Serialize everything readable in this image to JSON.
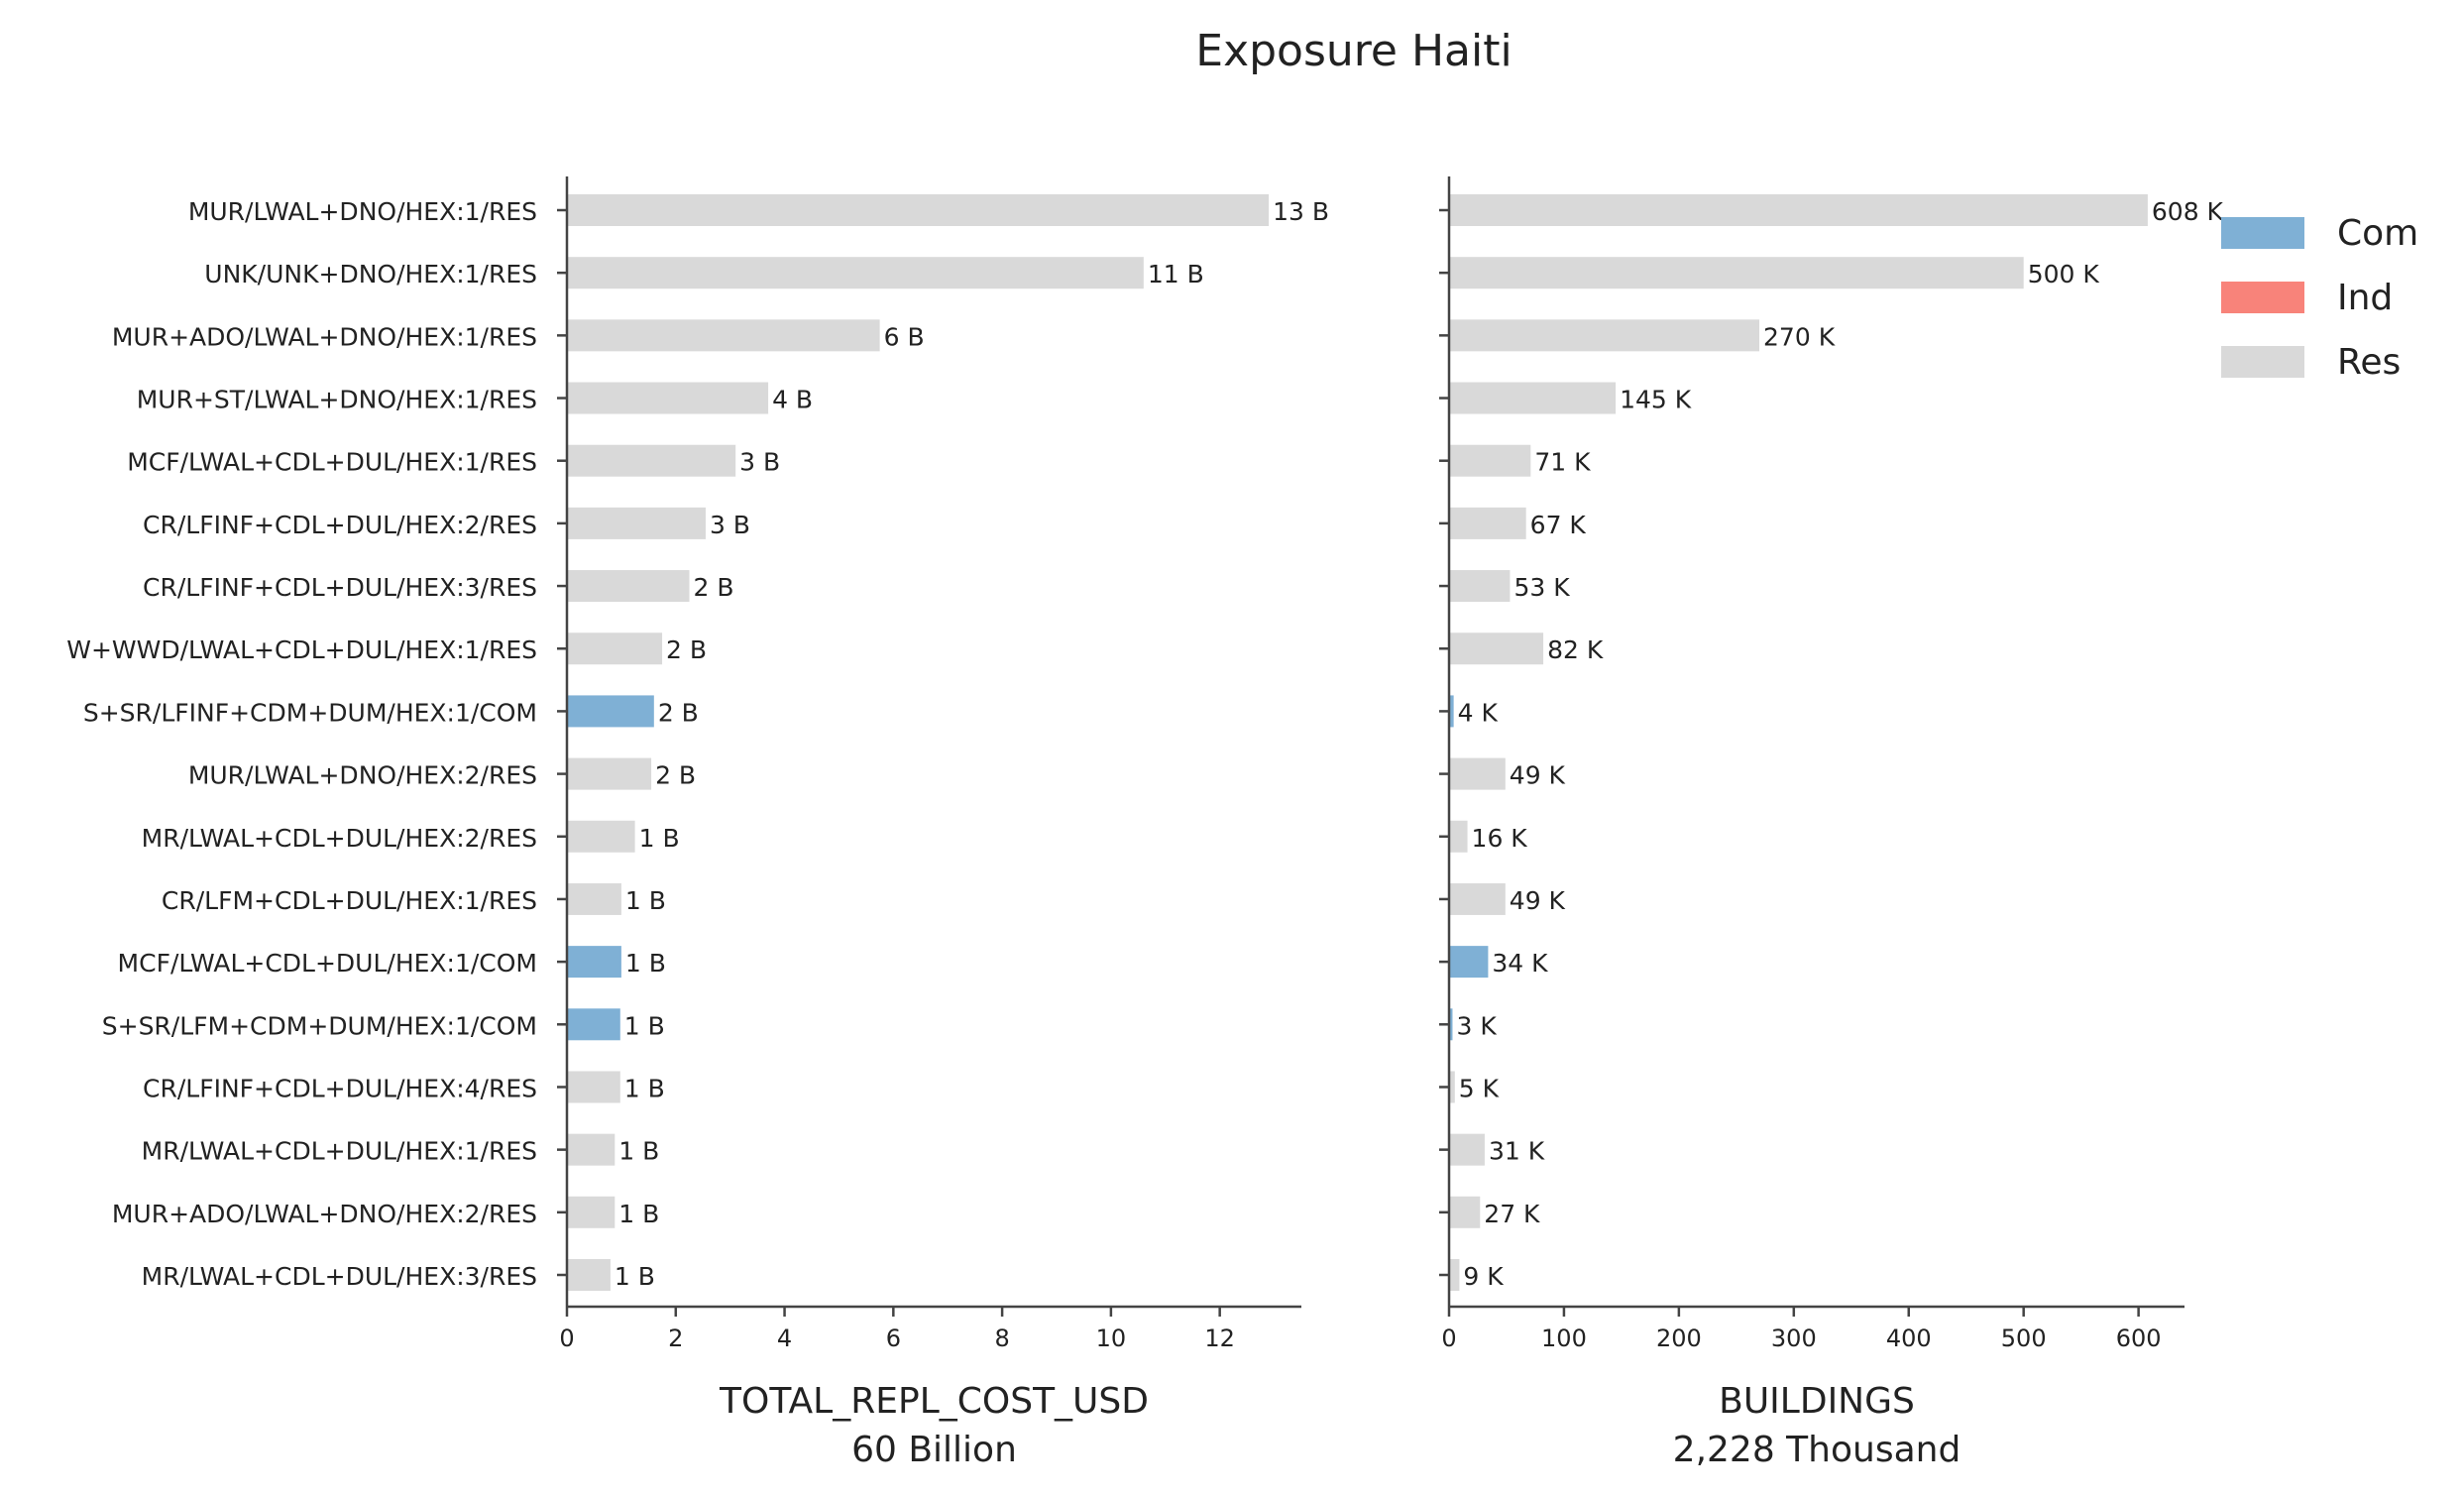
{
  "chart_data": {
    "title": "Exposure Haiti",
    "type": "bar",
    "orientation": "horizontal",
    "categories": [
      "MUR/LWAL+DNO/HEX:1/RES",
      "UNK/UNK+DNO/HEX:1/RES",
      "MUR+ADO/LWAL+DNO/HEX:1/RES",
      "MUR+ST/LWAL+DNO/HEX:1/RES",
      "MCF/LWAL+CDL+DUL/HEX:1/RES",
      "CR/LFINF+CDL+DUL/HEX:2/RES",
      "CR/LFINF+CDL+DUL/HEX:3/RES",
      "W+WWD/LWAL+CDL+DUL/HEX:1/RES",
      "S+SR/LFINF+CDM+DUM/HEX:1/COM",
      "MUR/LWAL+DNO/HEX:2/RES",
      "MR/LWAL+CDL+DUL/HEX:2/RES",
      "CR/LFM+CDL+DUL/HEX:1/RES",
      "MCF/LWAL+CDL+DUL/HEX:1/COM",
      "S+SR/LFM+CDM+DUM/HEX:1/COM",
      "CR/LFINF+CDL+DUL/HEX:4/RES",
      "MR/LWAL+CDL+DUL/HEX:1/RES",
      "MUR+ADO/LWAL+DNO/HEX:2/RES",
      "MR/LWAL+CDL+DUL/HEX:3/RES"
    ],
    "occupancy": [
      "Res",
      "Res",
      "Res",
      "Res",
      "Res",
      "Res",
      "Res",
      "Res",
      "Com",
      "Res",
      "Res",
      "Res",
      "Com",
      "Com",
      "Res",
      "Res",
      "Res",
      "Res"
    ],
    "panels": [
      {
        "xlabel": "TOTAL_REPL_COST_USD",
        "xsublabel": "60 Billion",
        "xlim": [
          0,
          13.5
        ],
        "xticks": [
          0,
          2,
          4,
          6,
          8,
          10,
          12
        ],
        "values": [
          12.9,
          10.6,
          5.75,
          3.7,
          3.1,
          2.55,
          2.25,
          1.75,
          1.6,
          1.55,
          1.25,
          1.0,
          1.0,
          0.98,
          0.98,
          0.88,
          0.88,
          0.8
        ],
        "value_labels": [
          "13 B",
          "11 B",
          "6 B",
          "4 B",
          "3 B",
          "3 B",
          "2 B",
          "2 B",
          "2 B",
          "2 B",
          "1 B",
          "1 B",
          "1 B",
          "1 B",
          "1 B",
          "1 B",
          "1 B",
          "1 B"
        ]
      },
      {
        "xlabel": "BUILDINGS",
        "xsublabel": "2,228 Thousand",
        "xlim": [
          0,
          640
        ],
        "xticks": [
          0,
          100,
          200,
          300,
          400,
          500,
          600
        ],
        "values": [
          608,
          500,
          270,
          145,
          71,
          67,
          53,
          82,
          4,
          49,
          16,
          49,
          34,
          3,
          5,
          31,
          27,
          9
        ],
        "value_labels": [
          "608 K",
          "500 K",
          "270 K",
          "145 K",
          "71 K",
          "67 K",
          "53 K",
          "82 K",
          "4 K",
          "49 K",
          "16 K",
          "49 K",
          "34 K",
          "3 K",
          "5 K",
          "31 K",
          "27 K",
          "9 K"
        ]
      }
    ],
    "legend": {
      "position": "top-right",
      "entries": [
        {
          "name": "Com",
          "color": "#7fb0d5"
        },
        {
          "name": "Ind",
          "color": "#f8837a"
        },
        {
          "name": "Res",
          "color": "#d9d9d9"
        }
      ]
    },
    "grid": false
  }
}
